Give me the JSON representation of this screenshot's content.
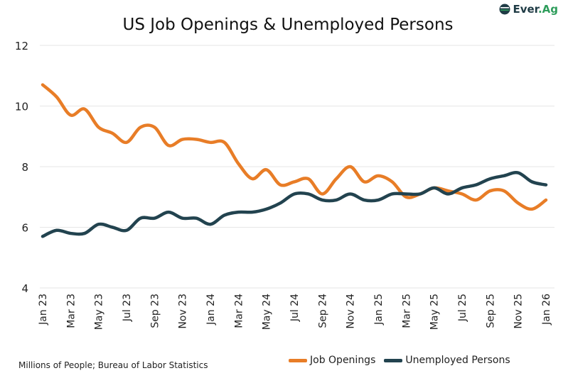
{
  "brand": {
    "logo_text_1": "Ever",
    "logo_text_2": ".Ag"
  },
  "footnote": "Millions of People; Bureau of Labor Statistics",
  "chart_data": {
    "type": "line",
    "title": "US Job Openings & Unemployed Persons",
    "xlabel": "",
    "ylabel": "",
    "ylim": [
      4,
      12
    ],
    "yticks": [
      4,
      6,
      8,
      10,
      12
    ],
    "grid": "horizontal",
    "legend_placement": "bottom",
    "x": [
      "Jan 23",
      "Feb 23",
      "Mar 23",
      "Apr 23",
      "May 23",
      "Jun 23",
      "Jul 23",
      "Aug 23",
      "Sep 23",
      "Oct 23",
      "Nov 23",
      "Dec 23",
      "Jan 24",
      "Feb 24",
      "Mar 24",
      "Apr 24",
      "May 24",
      "Jun 24",
      "Jul 24",
      "Aug 24",
      "Sep 24",
      "Oct 24",
      "Nov 24",
      "Dec 24",
      "Jan 25",
      "Feb 25",
      "Mar 25",
      "Apr 25",
      "May 25",
      "Jun 25",
      "Jul 25",
      "Aug 25",
      "Sep 25",
      "Oct 25",
      "Nov 25",
      "Dec 25",
      "Jan 26"
    ],
    "xtick_labels": [
      "Jan 23",
      "Mar 23",
      "May 23",
      "Jul 23",
      "Sep 23",
      "Nov 23",
      "Jan 24",
      "Mar 24",
      "May 24",
      "Jul 24",
      "Sep 24",
      "Nov 24",
      "Jan 25",
      "Mar 25",
      "May 25",
      "Jul 25",
      "Sep 25",
      "Nov 25",
      "Jan 26"
    ],
    "series": [
      {
        "name": "Job Openings",
        "color": "#e87d27",
        "values": [
          10.7,
          10.3,
          9.7,
          9.9,
          9.3,
          9.1,
          8.8,
          9.3,
          9.3,
          8.7,
          8.9,
          8.9,
          8.8,
          8.8,
          8.1,
          7.6,
          7.9,
          7.4,
          7.5,
          7.6,
          7.1,
          7.6,
          8.0,
          7.5,
          7.7,
          7.5,
          7.0,
          7.1,
          7.3,
          7.2,
          7.1,
          6.9,
          7.2,
          7.2,
          6.8,
          6.6,
          6.9
        ]
      },
      {
        "name": "Unemployed Persons",
        "color": "#22434f",
        "values": [
          5.7,
          5.9,
          5.8,
          5.8,
          6.1,
          6.0,
          5.9,
          6.3,
          6.3,
          6.5,
          6.3,
          6.3,
          6.1,
          6.4,
          6.5,
          6.5,
          6.6,
          6.8,
          7.1,
          7.1,
          6.9,
          6.9,
          7.1,
          6.9,
          6.9,
          7.1,
          7.1,
          7.1,
          7.3,
          7.1,
          7.3,
          7.4,
          7.6,
          7.7,
          7.8,
          7.5,
          7.4
        ]
      }
    ]
  }
}
